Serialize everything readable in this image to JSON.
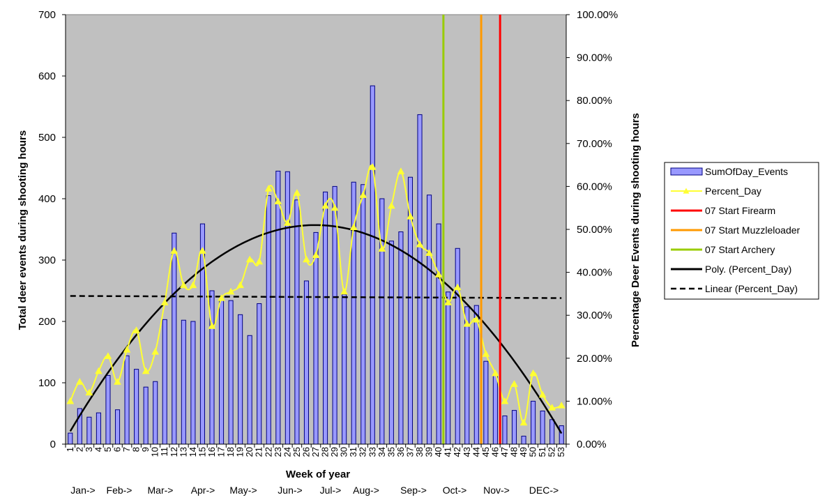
{
  "chart_data": {
    "type": "bar",
    "title": "",
    "xlabel": "Week of year",
    "ylabel": "Total deer events during shooting hours",
    "y2label": "Percentage Deer Events during shooting hours",
    "ylim": [
      0,
      700
    ],
    "yticks": [
      0,
      100,
      200,
      300,
      400,
      500,
      600,
      700
    ],
    "y2lim": [
      0,
      1
    ],
    "y2ticks": [
      "0.00%",
      "10.00%",
      "20.00%",
      "30.00%",
      "40.00%",
      "50.00%",
      "60.00%",
      "70.00%",
      "80.00%",
      "90.00%",
      "100.00%"
    ],
    "grid": false,
    "legend_position": "right",
    "categories": [
      1,
      2,
      3,
      4,
      5,
      6,
      7,
      8,
      9,
      10,
      11,
      12,
      13,
      14,
      15,
      16,
      17,
      18,
      19,
      20,
      21,
      22,
      23,
      24,
      25,
      26,
      27,
      28,
      29,
      30,
      31,
      32,
      33,
      34,
      35,
      36,
      37,
      38,
      39,
      40,
      41,
      42,
      43,
      44,
      45,
      46,
      47,
      48,
      49,
      50,
      51,
      52,
      53
    ],
    "months": [
      "Jan->",
      "Feb->",
      "Mar->",
      "Apr->",
      "May->",
      "Jun->",
      "Jul->",
      "Aug->",
      "Sep->",
      "Oct->",
      "Nov->",
      "DEC->"
    ],
    "series": [
      {
        "name": "SumOfDay_Events",
        "type": "bar",
        "axis": "left",
        "color": "#9999ff",
        "values": [
          18,
          58,
          44,
          51,
          112,
          56,
          144,
          122,
          93,
          102,
          203,
          344,
          202,
          200,
          359,
          250,
          235,
          234,
          211,
          177,
          229,
          405,
          445,
          444,
          398,
          266,
          345,
          411,
          420,
          244,
          427,
          423,
          584,
          400,
          331,
          346,
          435,
          537,
          406,
          359,
          248,
          319,
          224,
          226,
          135,
          112,
          46,
          55,
          13,
          70,
          54,
          40,
          30
        ]
      },
      {
        "name": "Percent_Day",
        "type": "line",
        "axis": "right",
        "color": "#ffff33",
        "values": [
          0.1,
          0.145,
          0.12,
          0.17,
          0.205,
          0.145,
          0.22,
          0.265,
          0.17,
          0.215,
          0.33,
          0.45,
          0.37,
          0.37,
          0.45,
          0.275,
          0.34,
          0.355,
          0.37,
          0.43,
          0.425,
          0.595,
          0.565,
          0.515,
          0.585,
          0.43,
          0.44,
          0.555,
          0.55,
          0.355,
          0.505,
          0.58,
          0.645,
          0.455,
          0.555,
          0.635,
          0.53,
          0.465,
          0.445,
          0.395,
          0.33,
          0.365,
          0.28,
          0.29,
          0.21,
          0.165,
          0.1,
          0.14,
          0.05,
          0.165,
          0.115,
          0.085,
          0.09
        ]
      }
    ],
    "trendlines": [
      {
        "name": "Poly. (Percent_Day)",
        "type": "polynomial",
        "color": "#000000",
        "dashed": false,
        "peak_week": 27,
        "peak_value": 0.51,
        "start_value": 0.03,
        "end_value": 0.025
      },
      {
        "name": "Linear (Percent_Day)",
        "type": "linear",
        "color": "#000000",
        "dashed": true,
        "start_value": 0.345,
        "end_value": 0.34
      }
    ],
    "markers": [
      {
        "name": "07 Start Firearm",
        "week": 46.5,
        "color": "#ff0000"
      },
      {
        "name": "07 Start Muzzleloader",
        "week": 44.5,
        "color": "#ff9900"
      },
      {
        "name": "07 Start Archery",
        "week": 40.5,
        "color": "#99cc00"
      }
    ],
    "legend": [
      "SumOfDay_Events",
      "Percent_Day",
      "07 Start Firearm",
      "07 Start Muzzleloader",
      "07 Start Archery",
      "Poly. (Percent_Day)",
      "Linear (Percent_Day)"
    ]
  }
}
